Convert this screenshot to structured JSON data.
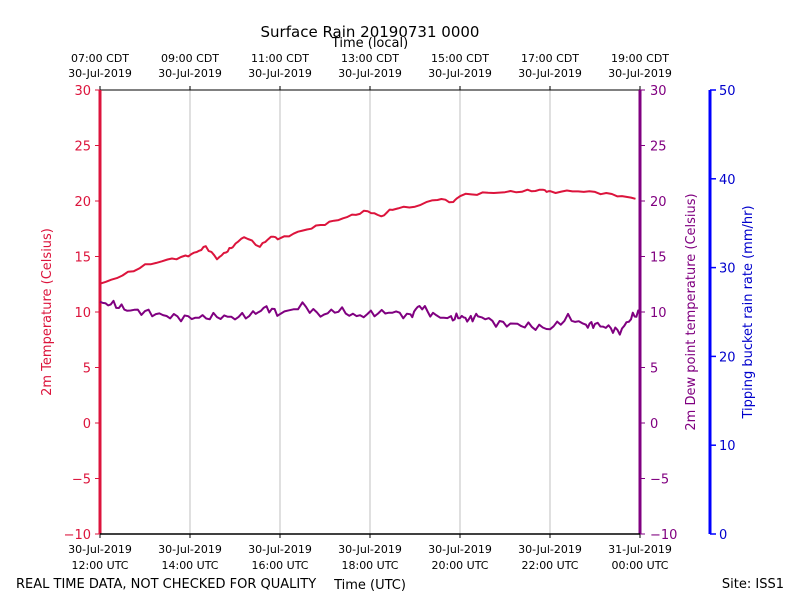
{
  "chart_data": {
    "type": "line",
    "title": "Surface Rain 20190731 0000",
    "top_axis_label": "Time (local)",
    "xlabel": "Time (UTC)",
    "ylabel_left": "2m Temperature (Celsius)",
    "ylabel_right": "2m Dew point temperature (Celsius)",
    "ylabel_right2": "Tipping bucket rain rate (mm/hr)",
    "footer_left": "REAL TIME DATA, NOT CHECKED FOR QUALITY",
    "footer_right": "Site: ISS1",
    "xlim_hours": [
      12,
      24
    ],
    "ylim_left": [
      -10,
      30
    ],
    "ylim_right": [
      -10,
      30
    ],
    "ylim_rain": [
      0,
      50
    ],
    "yticks": [
      30,
      25,
      20,
      15,
      10,
      5,
      0,
      -5,
      -10
    ],
    "ytick_labels": [
      "30",
      "25",
      "20",
      "15",
      "10",
      "5",
      "0",
      "−5",
      "−10"
    ],
    "rain_ticks": [
      50,
      40,
      30,
      20,
      10,
      0
    ],
    "rain_tick_labels": [
      "50",
      "40",
      "30",
      "20",
      "10",
      "0"
    ],
    "x_ticks_hours": [
      12,
      14,
      16,
      18,
      20,
      22,
      24
    ],
    "bottom_tick_labels": [
      [
        "30-Jul-2019",
        "12:00 UTC"
      ],
      [
        "30-Jul-2019",
        "14:00 UTC"
      ],
      [
        "30-Jul-2019",
        "16:00 UTC"
      ],
      [
        "30-Jul-2019",
        "18:00 UTC"
      ],
      [
        "30-Jul-2019",
        "20:00 UTC"
      ],
      [
        "30-Jul-2019",
        "22:00 UTC"
      ],
      [
        "31-Jul-2019",
        "00:00 UTC"
      ]
    ],
    "top_tick_labels": [
      [
        "07:00 CDT",
        "30-Jul-2019"
      ],
      [
        "09:00 CDT",
        "30-Jul-2019"
      ],
      [
        "11:00 CDT",
        "30-Jul-2019"
      ],
      [
        "13:00 CDT",
        "30-Jul-2019"
      ],
      [
        "15:00 CDT",
        "30-Jul-2019"
      ],
      [
        "17:00 CDT",
        "30-Jul-2019"
      ],
      [
        "19:00 CDT",
        "30-Jul-2019"
      ]
    ],
    "grid": true,
    "series": [
      {
        "name": "2m Temperature",
        "color": "#dc143c",
        "x": [
          12.0,
          12.5,
          13.0,
          13.5,
          13.9,
          14.15,
          14.35,
          14.6,
          14.8,
          14.95,
          15.2,
          15.55,
          15.8,
          16.0,
          16.4,
          16.8,
          17.2,
          17.6,
          17.95,
          18.25,
          18.5,
          19.0,
          19.5,
          19.85,
          20.0,
          20.5,
          21.0,
          21.5,
          21.85,
          22.0,
          22.5,
          23.0,
          23.5,
          23.9
        ],
        "y": [
          12.5,
          13.3,
          14.2,
          14.7,
          15.0,
          15.4,
          15.9,
          14.8,
          15.4,
          15.9,
          16.8,
          15.9,
          16.8,
          16.6,
          17.2,
          17.7,
          18.2,
          18.7,
          19.1,
          18.6,
          19.3,
          19.5,
          20.2,
          19.9,
          20.5,
          20.7,
          20.8,
          20.9,
          21.0,
          20.8,
          20.9,
          20.8,
          20.5,
          20.2
        ]
      },
      {
        "name": "2m Dew point temperature",
        "color": "#800080",
        "x": [
          12.0,
          12.3,
          12.6,
          13.0,
          13.4,
          13.8,
          14.2,
          14.6,
          15.0,
          15.4,
          15.7,
          16.0,
          16.5,
          16.9,
          17.3,
          17.7,
          18.1,
          18.5,
          18.9,
          19.1,
          19.4,
          19.8,
          20.0,
          20.2,
          20.4,
          20.8,
          21.2,
          21.6,
          22.0,
          22.4,
          22.8,
          23.0,
          23.3,
          23.55,
          23.8,
          24.0
        ],
        "y": [
          10.8,
          10.7,
          10.2,
          10.0,
          9.7,
          9.5,
          9.5,
          9.6,
          9.5,
          9.8,
          10.4,
          9.8,
          10.6,
          9.7,
          10.2,
          9.6,
          9.9,
          10.0,
          9.6,
          10.6,
          9.7,
          9.4,
          9.6,
          9.3,
          9.7,
          9.0,
          8.9,
          8.7,
          8.5,
          9.5,
          8.8,
          8.9,
          8.6,
          8.2,
          9.5,
          10.0
        ]
      }
    ]
  }
}
